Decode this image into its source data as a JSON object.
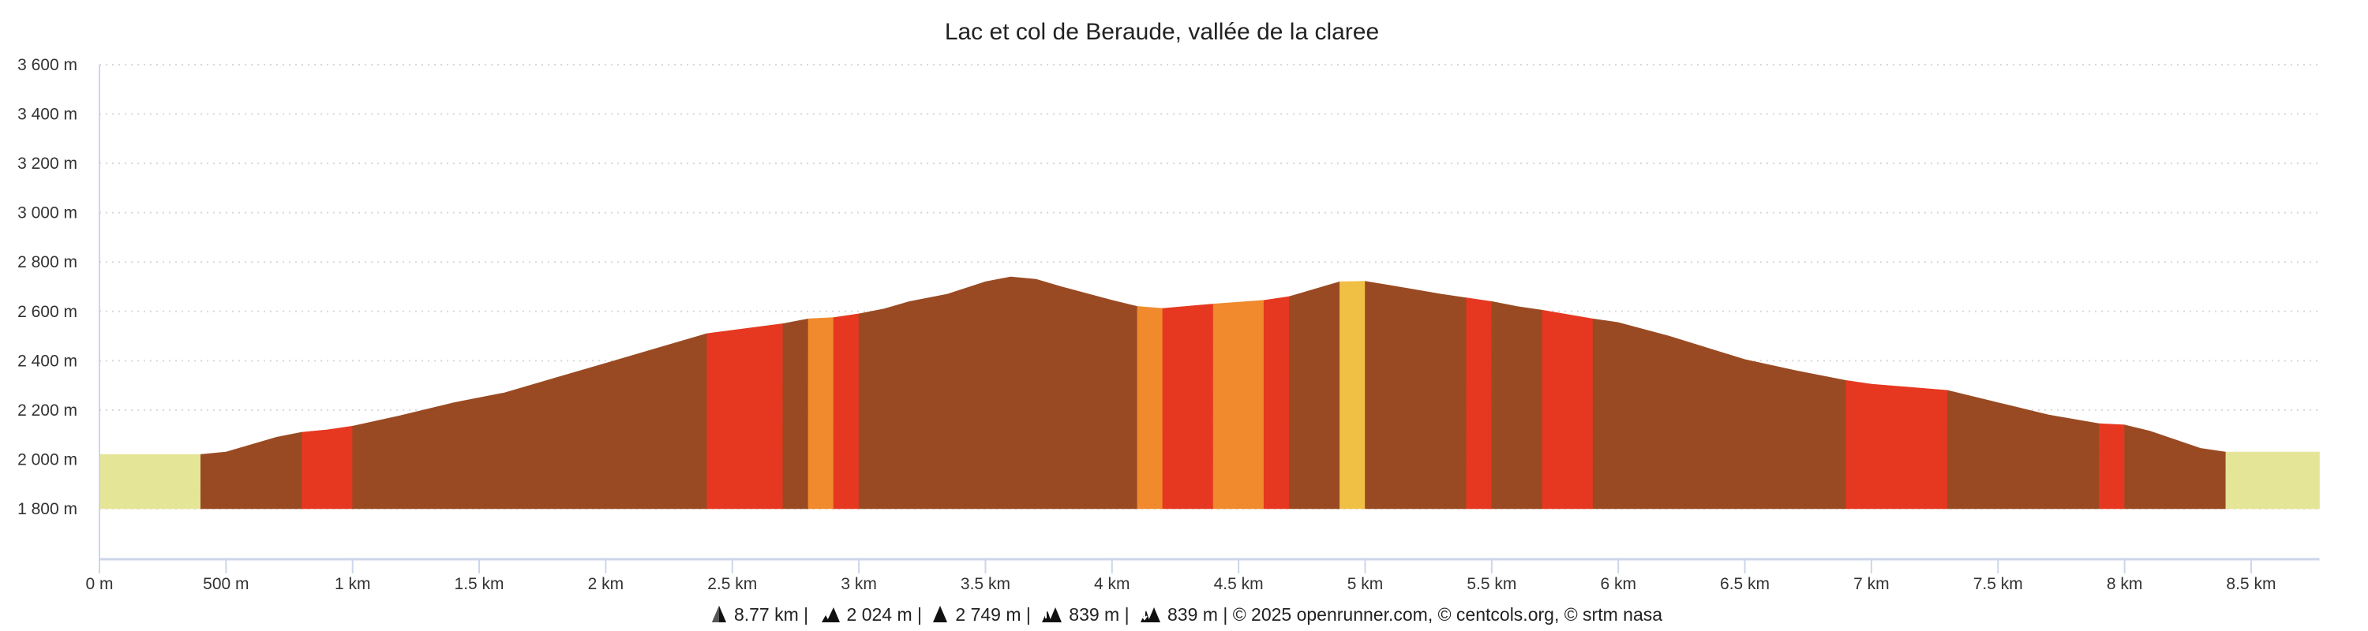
{
  "chart_data": {
    "type": "area",
    "title": "Lac et col de Beraude, vallée de la claree",
    "xlabel": "",
    "ylabel": "",
    "xlim_km": [
      0,
      8.77
    ],
    "ylim": [
      1800,
      3600
    ],
    "grid": true,
    "yticks": [
      1800,
      2000,
      2200,
      2400,
      2600,
      2800,
      3000,
      3200,
      3400,
      3600
    ],
    "ytick_labels": [
      "1 800 m",
      "2 000 m",
      "2 200 m",
      "2 400 m",
      "2 600 m",
      "2 800 m",
      "3 000 m",
      "3 200 m",
      "3 400 m",
      "3 600 m"
    ],
    "xticks": [
      0,
      0.5,
      1,
      1.5,
      2,
      2.5,
      3,
      3.5,
      4,
      4.5,
      5,
      5.5,
      6,
      6.5,
      7,
      7.5,
      8,
      8.5
    ],
    "xtick_labels": [
      "0 m",
      "500 m",
      "1 km",
      "1.5 km",
      "2 km",
      "2.5 km",
      "3 km",
      "3.5 km",
      "4 km",
      "4.5 km",
      "5 km",
      "5.5 km",
      "6 km",
      "6.5 km",
      "7 km",
      "7.5 km",
      "8 km",
      "8.5 km"
    ],
    "profile": [
      [
        0,
        2020
      ],
      [
        0.4,
        2020
      ],
      [
        0.5,
        2030
      ],
      [
        0.6,
        2060
      ],
      [
        0.7,
        2090
      ],
      [
        0.8,
        2110
      ],
      [
        0.9,
        2120
      ],
      [
        1.0,
        2135
      ],
      [
        1.2,
        2180
      ],
      [
        1.4,
        2230
      ],
      [
        1.6,
        2270
      ],
      [
        1.8,
        2330
      ],
      [
        2.0,
        2390
      ],
      [
        2.2,
        2450
      ],
      [
        2.3,
        2480
      ],
      [
        2.4,
        2510
      ],
      [
        2.7,
        2550
      ],
      [
        2.8,
        2570
      ],
      [
        2.9,
        2575
      ],
      [
        3.0,
        2590
      ],
      [
        3.1,
        2610
      ],
      [
        3.2,
        2640
      ],
      [
        3.35,
        2670
      ],
      [
        3.5,
        2720
      ],
      [
        3.6,
        2740
      ],
      [
        3.7,
        2730
      ],
      [
        3.8,
        2700
      ],
      [
        4.0,
        2645
      ],
      [
        4.1,
        2620
      ],
      [
        4.2,
        2612
      ],
      [
        4.4,
        2630
      ],
      [
        4.6,
        2645
      ],
      [
        4.7,
        2660
      ],
      [
        4.8,
        2690
      ],
      [
        4.9,
        2720
      ],
      [
        5.0,
        2722
      ],
      [
        5.1,
        2705
      ],
      [
        5.3,
        2670
      ],
      [
        5.4,
        2655
      ],
      [
        5.5,
        2640
      ],
      [
        5.6,
        2620
      ],
      [
        5.7,
        2605
      ],
      [
        5.9,
        2570
      ],
      [
        6.0,
        2555
      ],
      [
        6.2,
        2500
      ],
      [
        6.5,
        2405
      ],
      [
        6.7,
        2360
      ],
      [
        6.9,
        2320
      ],
      [
        7.0,
        2305
      ],
      [
        7.3,
        2280
      ],
      [
        7.5,
        2230
      ],
      [
        7.7,
        2180
      ],
      [
        7.9,
        2145
      ],
      [
        8.0,
        2140
      ],
      [
        8.1,
        2115
      ],
      [
        8.3,
        2045
      ],
      [
        8.4,
        2030
      ],
      [
        8.77,
        2030
      ]
    ],
    "segments": [
      {
        "from": 0,
        "to": 0.4,
        "grade": "flat"
      },
      {
        "from": 0.4,
        "to": 0.8,
        "grade": "steep"
      },
      {
        "from": 0.8,
        "to": 1.0,
        "grade": "very-steep"
      },
      {
        "from": 1.0,
        "to": 2.4,
        "grade": "steep"
      },
      {
        "from": 2.4,
        "to": 2.7,
        "grade": "very-steep"
      },
      {
        "from": 2.7,
        "to": 2.8,
        "grade": "steep"
      },
      {
        "from": 2.8,
        "to": 2.9,
        "grade": "moderate"
      },
      {
        "from": 2.9,
        "to": 3.0,
        "grade": "very-steep"
      },
      {
        "from": 3.0,
        "to": 4.1,
        "grade": "steep"
      },
      {
        "from": 4.1,
        "to": 4.2,
        "grade": "moderate"
      },
      {
        "from": 4.2,
        "to": 4.4,
        "grade": "very-steep"
      },
      {
        "from": 4.4,
        "to": 4.6,
        "grade": "moderate"
      },
      {
        "from": 4.6,
        "to": 4.7,
        "grade": "very-steep"
      },
      {
        "from": 4.7,
        "to": 4.9,
        "grade": "steep"
      },
      {
        "from": 4.9,
        "to": 5.0,
        "grade": "gentle"
      },
      {
        "from": 5.0,
        "to": 5.4,
        "grade": "steep"
      },
      {
        "from": 5.4,
        "to": 5.5,
        "grade": "very-steep"
      },
      {
        "from": 5.5,
        "to": 5.7,
        "grade": "steep"
      },
      {
        "from": 5.7,
        "to": 5.9,
        "grade": "very-steep"
      },
      {
        "from": 5.9,
        "to": 6.9,
        "grade": "steep"
      },
      {
        "from": 6.9,
        "to": 7.3,
        "grade": "very-steep"
      },
      {
        "from": 7.3,
        "to": 7.9,
        "grade": "steep"
      },
      {
        "from": 7.9,
        "to": 8.0,
        "grade": "very-steep"
      },
      {
        "from": 8.0,
        "to": 8.4,
        "grade": "steep"
      },
      {
        "from": 8.4,
        "to": 8.77,
        "grade": "flat"
      }
    ],
    "colors": {
      "flat": "#e5e597",
      "gentle": "#f0c045",
      "moderate": "#f08a2c",
      "very-steep": "#e63821",
      "steep": "#994a22"
    }
  },
  "footer": {
    "distance": "8.77 km",
    "min_altitude": "2 024 m",
    "max_altitude": "2 749 m",
    "ascent": "839 m",
    "descent": "839 m",
    "separator": "|",
    "credits": "© 2025 openrunner.com, © centcols.org, © srtm nasa"
  }
}
